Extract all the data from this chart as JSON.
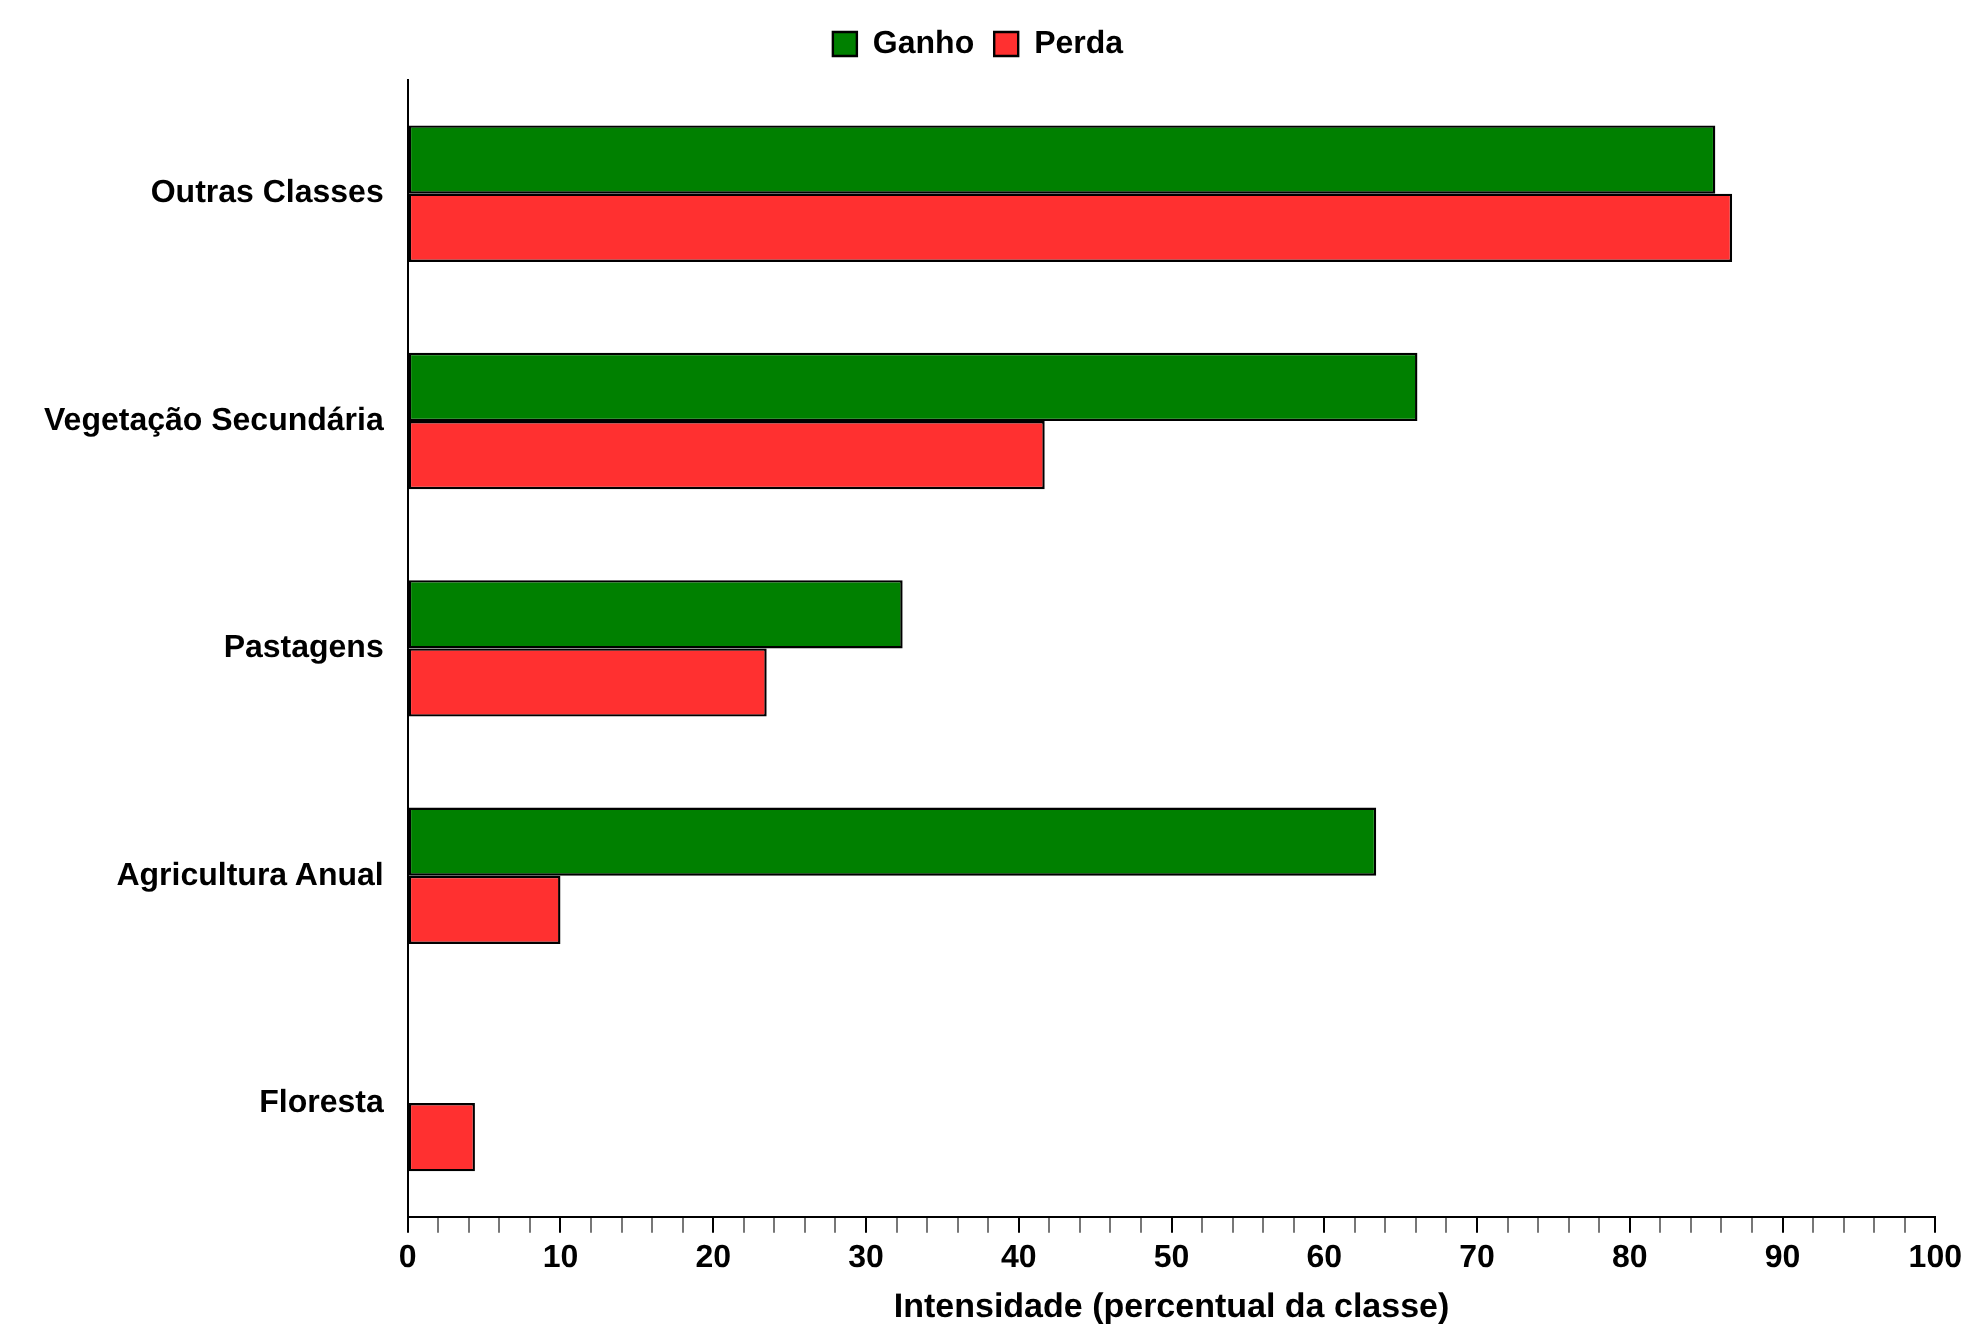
{
  "chart_data": {
    "type": "bar",
    "orientation": "horizontal",
    "xlabel": "Intensidade (percentual da classe)",
    "categories": [
      "Outras Classes",
      "Vegetação Secundária",
      "Pastagens",
      "Agricultura Anual",
      "Floresta"
    ],
    "series": [
      {
        "name": "Ganho",
        "color": "#008000",
        "values": [
          85.6,
          66.1,
          32.4,
          63.4,
          null
        ]
      },
      {
        "name": "Perda",
        "color": "#ff3030",
        "values": [
          86.7,
          41.7,
          23.5,
          10.0,
          4.4
        ]
      }
    ],
    "xlim": [
      0,
      100
    ],
    "xticks": [
      0,
      {
        "value": 2,
        "label": null
      },
      {
        "value": 4,
        "label": null
      },
      {
        "value": 6,
        "label": null
      },
      {
        "value": 8,
        "label": null
      },
      10,
      {
        "value": 12,
        "label": null
      },
      {
        "value": 14,
        "label": null
      },
      {
        "value": 16,
        "label": null
      },
      {
        "value": 18,
        "label": null
      },
      20,
      {
        "value": 22,
        "label": null
      },
      {
        "value": 24,
        "label": null
      },
      {
        "value": 26,
        "label": null
      },
      {
        "value": 28,
        "label": null
      },
      30,
      {
        "value": 32,
        "label": null
      },
      {
        "value": 34,
        "label": null
      },
      {
        "value": 36,
        "label": null
      },
      {
        "value": 38,
        "label": null
      },
      40,
      {
        "value": 42,
        "label": null
      },
      {
        "value": 44,
        "label": null
      },
      {
        "value": 46,
        "label": null
      },
      {
        "value": 48,
        "label": null
      },
      50,
      {
        "value": 52,
        "label": null
      },
      {
        "value": 54,
        "label": null
      },
      {
        "value": 56,
        "label": null
      },
      {
        "value": 58,
        "label": null
      },
      60,
      {
        "value": 62,
        "label": null
      },
      {
        "value": 64,
        "label": null
      },
      {
        "value": 66,
        "label": null
      },
      {
        "value": 68,
        "label": null
      },
      70,
      {
        "value": 72,
        "label": null
      },
      {
        "value": 74,
        "label": null
      },
      {
        "value": 76,
        "label": null
      },
      {
        "value": 78,
        "label": null
      },
      80,
      {
        "value": 82,
        "label": null
      },
      {
        "value": 84,
        "label": null
      },
      {
        "value": 86,
        "label": null
      },
      {
        "value": 88,
        "label": null
      },
      90,
      {
        "value": 92,
        "label": null
      },
      {
        "value": 94,
        "label": null
      },
      {
        "value": 96,
        "label": null
      },
      {
        "value": 98,
        "label": null
      },
      100
    ],
    "grid": false,
    "legend": "top"
  }
}
